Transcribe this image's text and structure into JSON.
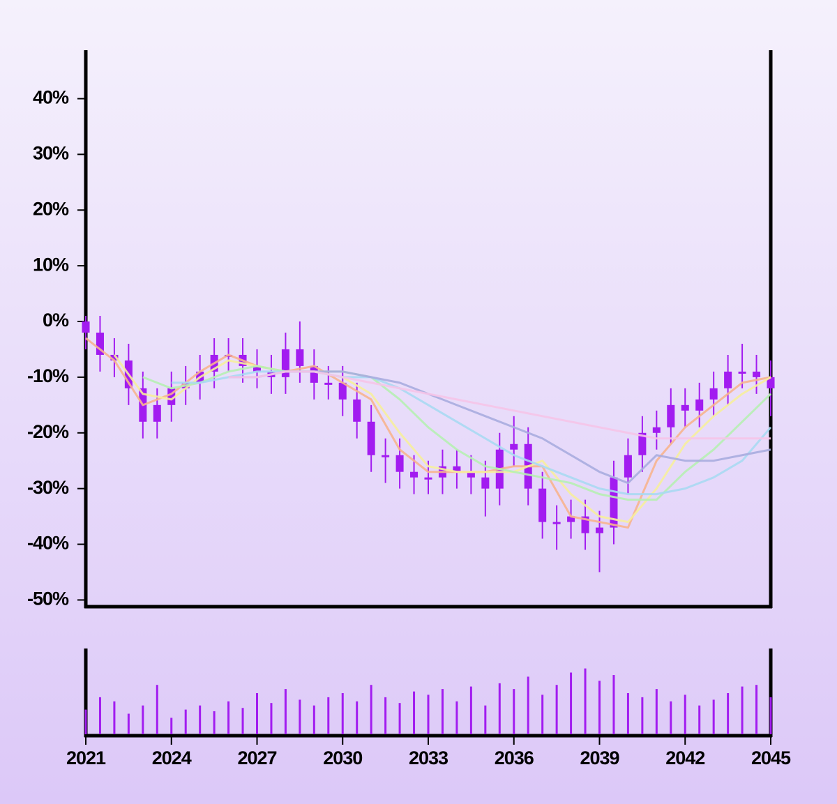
{
  "chart_data": [
    {
      "type": "candlestick",
      "x": [
        2021,
        2021.5,
        2022,
        2022.5,
        2023,
        2023.5,
        2024,
        2024.5,
        2025,
        2025.5,
        2026,
        2026.5,
        2027,
        2027.5,
        2028,
        2028.5,
        2029,
        2029.5,
        2030,
        2030.5,
        2031,
        2031.5,
        2032,
        2032.5,
        2033,
        2033.5,
        2034,
        2034.5,
        2035,
        2035.5,
        2036,
        2036.5,
        2037,
        2037.5,
        2038,
        2038.5,
        2039,
        2039.5,
        2040,
        2040.5,
        2041,
        2041.5,
        2042,
        2042.5,
        2043,
        2043.5,
        2044,
        2044.5,
        2045
      ],
      "open": [
        0,
        -2,
        -6,
        -7,
        -12,
        -18,
        -15,
        -12,
        -11,
        -9,
        -6,
        -6,
        -8,
        -9,
        -10,
        -5,
        -8,
        -11,
        -11,
        -14,
        -18,
        -24,
        -24,
        -27,
        -28,
        -28,
        -26,
        -27,
        -28,
        -30,
        -23,
        -22,
        -30,
        -36,
        -36,
        -35,
        -38,
        -37,
        -28,
        -24,
        -20,
        -19,
        -15,
        -16,
        -14,
        -12,
        -9,
        -9,
        -10
      ],
      "high": [
        1,
        1,
        -3,
        -4,
        -9,
        -12,
        -9,
        -8,
        -6,
        -3,
        -3,
        -3,
        -5,
        -6,
        -2,
        0,
        -5,
        -8,
        -8,
        -11,
        -15,
        -21,
        -21,
        -24,
        -25,
        -23,
        -23,
        -24,
        -25,
        -20,
        -17,
        -19,
        -27,
        -33,
        -32,
        -32,
        -34,
        -25,
        -21,
        -17,
        -16,
        -12,
        -12,
        -11,
        -9,
        -6,
        -4,
        -6,
        -7
      ],
      "low": [
        -5,
        -9,
        -10,
        -15,
        -21,
        -21,
        -18,
        -15,
        -14,
        -12,
        -9,
        -11,
        -12,
        -13,
        -13,
        -11,
        -14,
        -14,
        -17,
        -21,
        -27,
        -29,
        -30,
        -31,
        -31,
        -31,
        -30,
        -31,
        -35,
        -33,
        -26,
        -33,
        -39,
        -41,
        -39,
        -41,
        -45,
        -40,
        -31,
        -27,
        -23,
        -22,
        -19,
        -19,
        -17,
        -15,
        -12,
        -13,
        -17
      ],
      "close": [
        -2,
        -6,
        -7,
        -12,
        -18,
        -15,
        -12,
        -11,
        -9,
        -6,
        -6,
        -8,
        -9,
        -10,
        -5,
        -8,
        -11,
        -11,
        -14,
        -18,
        -24,
        -24,
        -27,
        -28,
        -28,
        -26,
        -27,
        -28,
        -30,
        -23,
        -22,
        -30,
        -36,
        -36,
        -35,
        -38,
        -37,
        -28,
        -24,
        -20,
        -19,
        -15,
        -16,
        -14,
        -12,
        -9,
        -9,
        -10,
        -12
      ],
      "color": "#a21cf0",
      "xlim": [
        2021,
        2045
      ],
      "ylim": [
        -51.2,
        48.7
      ],
      "xticks": [
        2021,
        2024,
        2027,
        2030,
        2033,
        2036,
        2039,
        2042,
        2045
      ],
      "yticks": [
        {
          "value": -50,
          "label": "-50%"
        },
        {
          "value": -40,
          "label": "-40%"
        },
        {
          "value": -30,
          "label": "-30%"
        },
        {
          "value": -20,
          "label": "-20%"
        },
        {
          "value": -10,
          "label": "-10%"
        },
        {
          "value": 0,
          "label": "0%"
        },
        {
          "value": 10,
          "label": "10%"
        },
        {
          "value": 20,
          "label": "20%"
        },
        {
          "value": 30,
          "label": "30%"
        },
        {
          "value": 40,
          "label": "40%"
        }
      ]
    },
    {
      "type": "line",
      "x": [
        2021,
        2022,
        2023,
        2024,
        2025,
        2026,
        2027,
        2028,
        2029,
        2030,
        2031,
        2032,
        2033,
        2034,
        2035,
        2036,
        2037,
        2038,
        2039,
        2040,
        2041,
        2042,
        2043,
        2044,
        2045
      ],
      "series": [
        {
          "color": "#f7b48e",
          "values": [
            -3,
            -7,
            -15,
            -13,
            -9,
            -6,
            -8,
            -9,
            -8,
            -11,
            -14,
            -23,
            -27,
            -27,
            -27,
            -26,
            -26,
            -35,
            -36,
            -37,
            -25,
            -19,
            -15,
            -11,
            -10
          ]
        },
        {
          "color": "#f6ee9c",
          "values": [
            null,
            -6,
            -13,
            -14,
            -10,
            -7,
            -8,
            -9,
            -9,
            -10,
            -13,
            -20,
            -26,
            -27,
            -27,
            -27,
            -25,
            -31,
            -35,
            -36,
            -30,
            -22,
            -17,
            -13,
            -10
          ]
        },
        {
          "color": "#b6efb2",
          "values": [
            null,
            null,
            -10,
            -12,
            -11,
            -9,
            -8,
            -9,
            -9,
            -9,
            -10,
            -14,
            -19,
            -23,
            -26,
            -27,
            -28,
            -29,
            -31,
            -32,
            -32,
            -27,
            -23,
            -18,
            -13
          ]
        },
        {
          "color": "#a9d9f2",
          "values": [
            null,
            null,
            null,
            -11,
            -11,
            -10,
            -9,
            -9,
            -9,
            -10,
            -10,
            -12,
            -15,
            -18,
            -21,
            -24,
            -26,
            -28,
            -30,
            -31,
            -31,
            -30,
            -28,
            -25,
            -19
          ]
        },
        {
          "color": "#a8acdf",
          "values": [
            null,
            null,
            null,
            null,
            null,
            -10,
            -10,
            -9,
            -9,
            -9,
            -10,
            -11,
            -13,
            -15,
            -17,
            -19,
            -21,
            -24,
            -27,
            -29,
            -24,
            -25,
            -25,
            -24,
            -23
          ]
        },
        {
          "color": "#f5c4e8",
          "values": [
            null,
            null,
            null,
            null,
            null,
            -10,
            -10,
            -9,
            -9,
            -10,
            -11,
            -12,
            -13,
            -14,
            -15,
            -16,
            -17,
            -18,
            -19,
            -20,
            -21,
            -21,
            -21,
            -21,
            -21
          ]
        }
      ],
      "xlim": [
        2021,
        2045
      ],
      "ylim": [
        -51.2,
        48.7
      ]
    },
    {
      "type": "bar",
      "x": [
        2021,
        2021.5,
        2022,
        2022.5,
        2023,
        2023.5,
        2024,
        2024.5,
        2025,
        2025.5,
        2026,
        2026.5,
        2027,
        2027.5,
        2028,
        2028.5,
        2029,
        2029.5,
        2030,
        2030.5,
        2031,
        2031.5,
        2032,
        2032.5,
        2033,
        2033.5,
        2034,
        2034.5,
        2035,
        2035.5,
        2036,
        2036.5,
        2037,
        2037.5,
        2038,
        2038.5,
        2039,
        2039.5,
        2040,
        2040.5,
        2041,
        2041.5,
        2042,
        2042.5,
        2043,
        2043.5,
        2044,
        2044.5,
        2045
      ],
      "values": [
        30,
        45,
        40,
        25,
        35,
        60,
        20,
        30,
        35,
        28,
        40,
        32,
        50,
        38,
        55,
        42,
        35,
        45,
        50,
        40,
        60,
        45,
        38,
        52,
        48,
        55,
        40,
        58,
        35,
        62,
        55,
        70,
        48,
        60,
        75,
        80,
        65,
        72,
        50,
        45,
        55,
        40,
        48,
        35,
        42,
        50,
        58,
        60,
        45
      ],
      "color": "#a21cf0",
      "xlim": [
        2021,
        2045
      ],
      "ylim": [
        0,
        100
      ]
    }
  ]
}
